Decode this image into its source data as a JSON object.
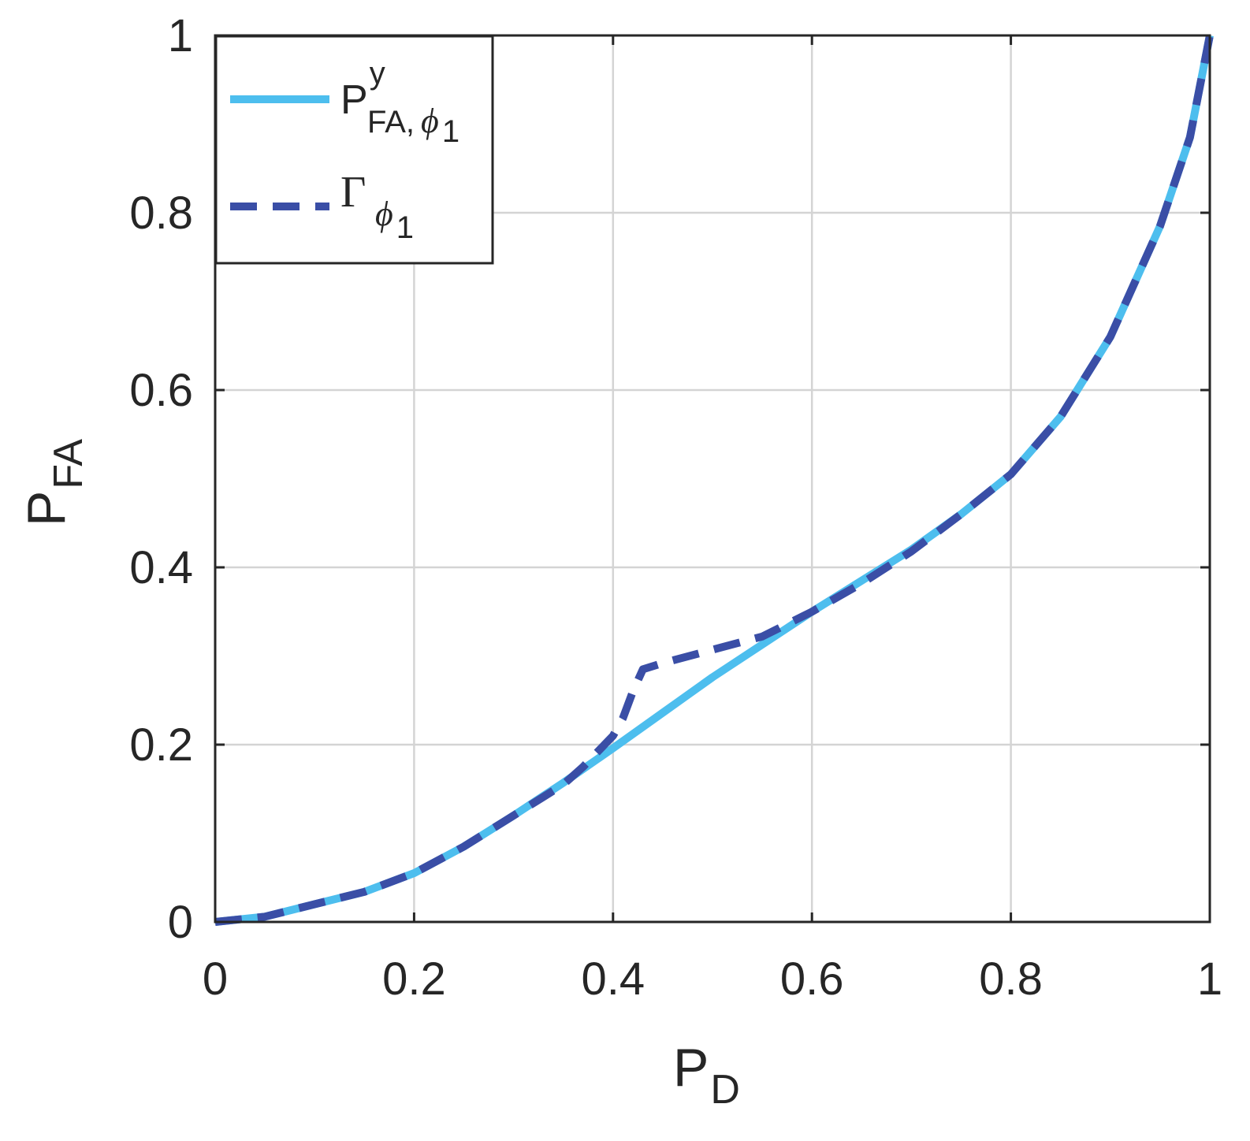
{
  "chart_data": {
    "type": "line",
    "title": "",
    "xlabel": {
      "main": "P",
      "sub": "D"
    },
    "ylabel": {
      "main": "P",
      "sub": "FA"
    },
    "xlim": [
      0,
      1
    ],
    "ylim": [
      0,
      1
    ],
    "xticks": [
      0,
      0.2,
      0.4,
      0.6,
      0.8,
      1
    ],
    "yticks": [
      0,
      0.2,
      0.4,
      0.6,
      0.8,
      1
    ],
    "xtick_labels": [
      "0",
      "0.2",
      "0.4",
      "0.6",
      "0.8",
      "1"
    ],
    "ytick_labels": [
      "0",
      "0.2",
      "0.4",
      "0.6",
      "0.8",
      "1"
    ],
    "grid": true,
    "legend_position": "top-left",
    "series": [
      {
        "name": {
          "main": "P",
          "sup": "y",
          "sub": "FA,",
          "phi": "ϕ",
          "phi_sub": "1"
        },
        "style": "solid",
        "color": "#4dbeee",
        "x": [
          0,
          0.05,
          0.1,
          0.15,
          0.2,
          0.25,
          0.3,
          0.35,
          0.4,
          0.45,
          0.5,
          0.55,
          0.6,
          0.65,
          0.7,
          0.75,
          0.8,
          0.85,
          0.9,
          0.95,
          0.98,
          1
        ],
        "y": [
          0,
          0.006,
          0.02,
          0.034,
          0.055,
          0.085,
          0.12,
          0.157,
          0.196,
          0.236,
          0.276,
          0.313,
          0.35,
          0.385,
          0.42,
          0.46,
          0.505,
          0.57,
          0.66,
          0.785,
          0.885,
          1
        ]
      },
      {
        "name": {
          "main": "Γ",
          "phi": "ϕ",
          "phi_sub": "1"
        },
        "style": "dashed",
        "color": "#3a4ea6",
        "x": [
          0,
          0.05,
          0.1,
          0.15,
          0.2,
          0.25,
          0.3,
          0.35,
          0.37,
          0.4,
          0.41,
          0.42,
          0.43,
          0.45,
          0.5,
          0.55,
          0.6,
          0.65,
          0.7,
          0.75,
          0.8,
          0.85,
          0.9,
          0.95,
          0.98,
          1
        ],
        "y": [
          0,
          0.006,
          0.02,
          0.034,
          0.055,
          0.085,
          0.12,
          0.155,
          0.175,
          0.21,
          0.23,
          0.26,
          0.285,
          0.292,
          0.307,
          0.322,
          0.35,
          0.382,
          0.418,
          0.46,
          0.505,
          0.57,
          0.66,
          0.785,
          0.885,
          1
        ]
      }
    ]
  }
}
